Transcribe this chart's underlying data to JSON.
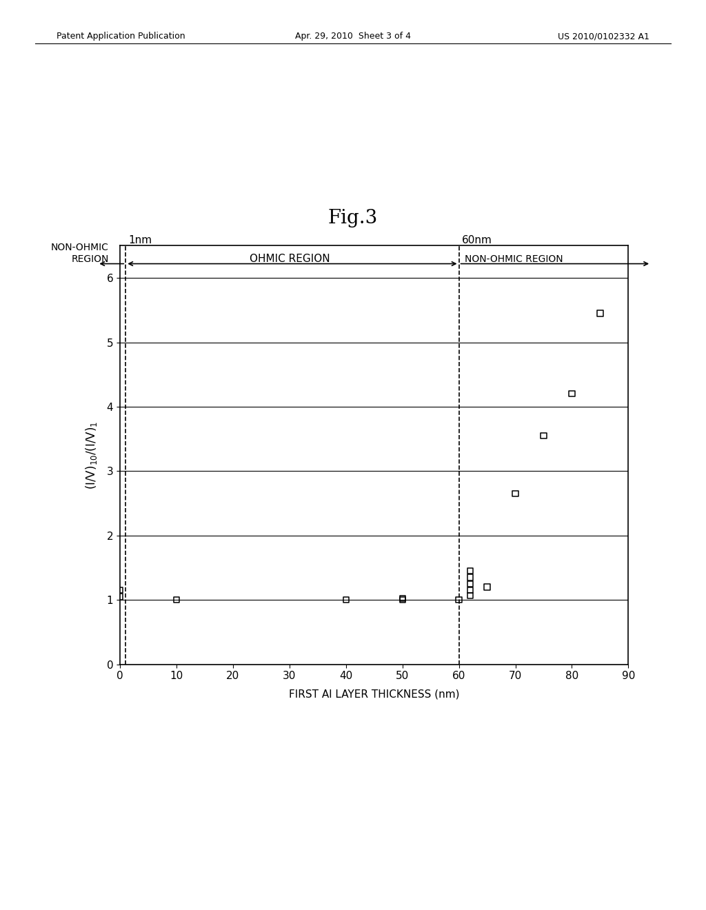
{
  "title": "Fig.3",
  "xlabel": "FIRST Al LAYER THICKNESS (nm)",
  "ylabel": "(I/V)$_{10}$/(I/V)$_1$",
  "xlim": [
    0,
    90
  ],
  "ylim": [
    0,
    6.5
  ],
  "yticks": [
    0,
    1,
    2,
    3,
    4,
    5,
    6
  ],
  "xticks": [
    0,
    10,
    20,
    30,
    40,
    50,
    60,
    70,
    80,
    90
  ],
  "vline1_x": 1,
  "vline1_label": "1nm",
  "vline2_x": 60,
  "vline2_label": "60nm",
  "ohmic_region_label": "OHMIC REGION",
  "non_ohmic_left_label": "NON-OHMIC\nREGION",
  "non_ohmic_right_label": "NON-OHMIC REGION",
  "data_points_x": [
    0,
    0,
    10,
    40,
    50,
    50,
    60,
    62,
    62,
    62,
    62,
    62,
    65,
    70,
    75,
    80,
    85
  ],
  "data_points_y": [
    1.15,
    1.05,
    1.0,
    1.0,
    1.02,
    1.0,
    1.0,
    1.07,
    1.15,
    1.25,
    1.35,
    1.45,
    1.2,
    2.65,
    3.55,
    4.2,
    5.45
  ],
  "bg_color": "#ffffff",
  "marker_color": "#000000",
  "font_size_title": 20,
  "font_size_labels": 11,
  "font_size_ticks": 11,
  "header_left": "Patent Application Publication",
  "header_center": "Apr. 29, 2010  Sheet 3 of 4",
  "header_right": "US 2010/0102332 A1"
}
